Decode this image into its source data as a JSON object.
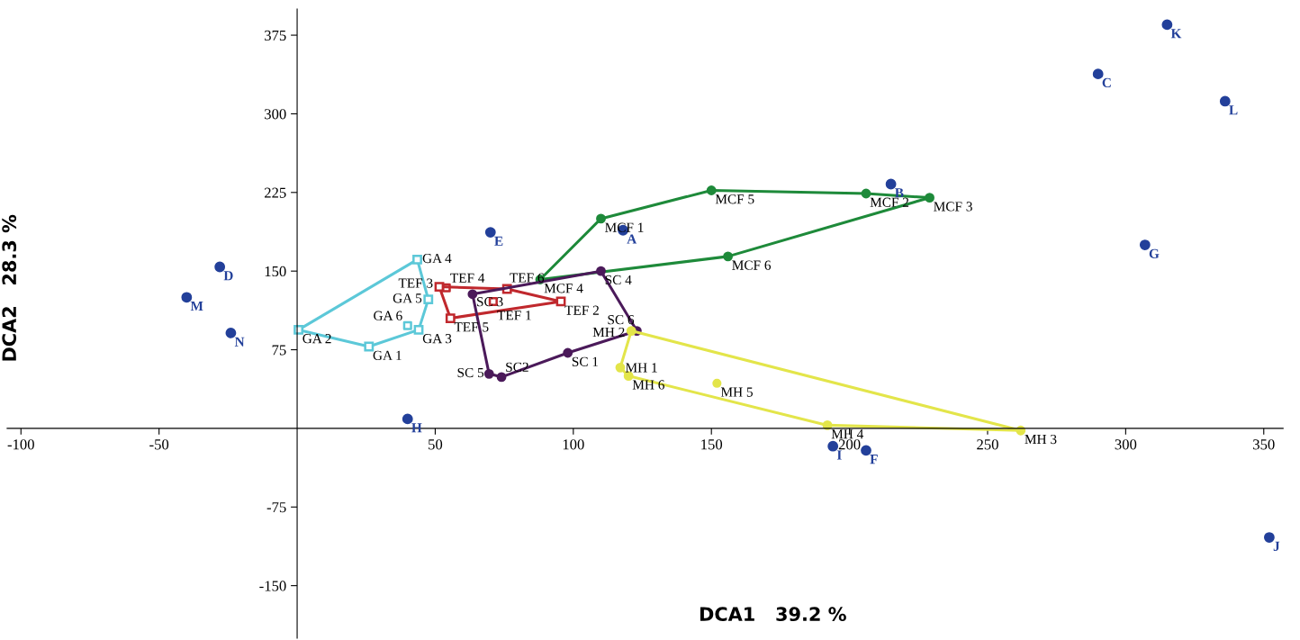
{
  "chart_data": {
    "type": "scatter",
    "xlabel": "DCA1   39.2 %",
    "ylabel": "DCA2   28.3 %",
    "xlim": [
      -105,
      357
    ],
    "ylim": [
      -200,
      400
    ],
    "xticks": [
      -100,
      -50,
      50,
      100,
      150,
      200,
      250,
      300,
      350
    ],
    "yticks": [
      -150,
      -75,
      75,
      150,
      225,
      300,
      375
    ],
    "grid": false,
    "legend": false,
    "series": [
      {
        "color": "#23409a",
        "marker": "circle",
        "x": [
          315,
          290,
          336,
          215,
          307,
          118,
          70,
          -28,
          -40,
          -24,
          40,
          194,
          206,
          352
        ],
        "values": [
          385,
          338,
          312,
          233,
          175,
          189,
          187,
          154,
          125,
          91,
          9,
          -17,
          -21,
          -104
        ],
        "value_labels": [
          "K",
          "C",
          "L",
          "B",
          "G",
          "A",
          "E",
          "D",
          "M",
          "N",
          "H",
          "I",
          "F",
          "J"
        ]
      },
      {
        "type": "line",
        "color": "#1e8a3a",
        "marker": "circle",
        "line_style": "solid",
        "x": [
          206,
          150,
          110,
          88,
          156,
          229
        ],
        "values": [
          224,
          227,
          200,
          142,
          164,
          220
        ],
        "value_labels": [
          "MCF 2",
          "MCF 5",
          "MCF 1",
          "MCF 4",
          "MCF 6",
          "MCF 3"
        ]
      },
      {
        "type": "line",
        "color": "#c0282d",
        "marker": "square",
        "line_style": "solid",
        "x": [
          51.5,
          76,
          95.5,
          55.5
        ],
        "values": [
          135,
          133,
          121,
          105
        ],
        "value_labels": [
          "TEF 3",
          "TEF 6",
          "TEF 2",
          "TEF 5"
        ]
      },
      {
        "color": "#c0282d",
        "marker": "square",
        "x": [
          54,
          71
        ],
        "values": [
          134,
          121
        ],
        "value_labels": [
          "TEF 4",
          "TEF 1"
        ]
      },
      {
        "type": "line",
        "color": "#4b1a5a",
        "marker": "circle",
        "line_style": "solid",
        "x": [
          74,
          98,
          123,
          110,
          63.5,
          69.5
        ],
        "values": [
          49,
          72,
          93,
          150,
          128,
          52
        ],
        "value_labels": [
          "SC2",
          "SC 1",
          "SC 6",
          "SC 4",
          "SC 3",
          "SC 5"
        ]
      },
      {
        "type": "line",
        "color": "#e3e54a",
        "marker": "circle",
        "line_style": "solid",
        "x": [
          117,
          121,
          262,
          192,
          120
        ],
        "values": [
          58,
          93,
          -2,
          3,
          50
        ],
        "value_labels": [
          "MH 1",
          "MH 2",
          "MH 3",
          "MH 4",
          "MH 6"
        ]
      },
      {
        "color": "#e3e54a",
        "marker": "circle",
        "x": [
          152
        ],
        "values": [
          43
        ],
        "value_labels": [
          "MH 5"
        ]
      },
      {
        "type": "line",
        "color": "#5cc8d8",
        "marker": "square",
        "line_style": "solid",
        "x": [
          44,
          26,
          0.5,
          43.5,
          47.5
        ],
        "values": [
          94,
          78,
          94,
          161,
          123
        ],
        "value_labels": [
          "GA 3",
          "GA 1",
          "GA 2",
          "GA 4",
          "GA 5"
        ]
      },
      {
        "color": "#5cc8d8",
        "marker": "square",
        "x": [
          40
        ],
        "values": [
          98
        ],
        "value_labels": [
          "GA 6"
        ]
      }
    ]
  }
}
